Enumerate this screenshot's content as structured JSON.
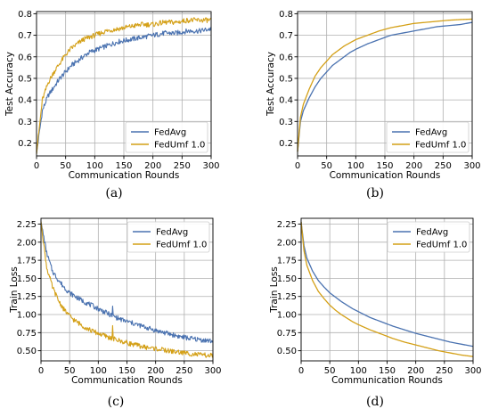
{
  "chart_data": [
    {
      "type": "line",
      "caption": "(a)",
      "xlabel": "Communication Rounds",
      "ylabel": "Test Accuracy",
      "xlim": [
        0,
        300
      ],
      "ylim": [
        0.14,
        0.81
      ],
      "xticks": [
        0,
        50,
        100,
        150,
        200,
        250,
        300
      ],
      "yticks": [
        0.2,
        0.3,
        0.4,
        0.5,
        0.6,
        0.7,
        0.8
      ],
      "grid": true,
      "legend": "lower-right",
      "noisy": true,
      "series": [
        {
          "name": "FedAvg",
          "color": "#4a72b0",
          "x": [
            0,
            10,
            20,
            30,
            40,
            50,
            60,
            70,
            80,
            90,
            100,
            120,
            140,
            160,
            180,
            200,
            220,
            240,
            260,
            280,
            300
          ],
          "y": [
            0.15,
            0.35,
            0.42,
            0.46,
            0.5,
            0.53,
            0.56,
            0.58,
            0.6,
            0.62,
            0.63,
            0.65,
            0.67,
            0.68,
            0.69,
            0.7,
            0.71,
            0.71,
            0.72,
            0.72,
            0.73
          ]
        },
        {
          "name": "FedUmf 1.0",
          "color": "#d4a017",
          "x": [
            0,
            10,
            20,
            30,
            40,
            50,
            60,
            70,
            80,
            90,
            100,
            120,
            140,
            160,
            180,
            200,
            220,
            240,
            260,
            280,
            300
          ],
          "y": [
            0.15,
            0.4,
            0.48,
            0.53,
            0.57,
            0.61,
            0.64,
            0.66,
            0.68,
            0.69,
            0.7,
            0.72,
            0.73,
            0.74,
            0.75,
            0.75,
            0.76,
            0.76,
            0.77,
            0.77,
            0.77
          ]
        }
      ]
    },
    {
      "type": "line",
      "caption": "(b)",
      "xlabel": "Communication Rounds",
      "ylabel": "Test Accuracy",
      "xlim": [
        0,
        300
      ],
      "ylim": [
        0.14,
        0.81
      ],
      "xticks": [
        0,
        50,
        100,
        150,
        200,
        250,
        300
      ],
      "yticks": [
        0.2,
        0.3,
        0.4,
        0.5,
        0.6,
        0.7,
        0.8
      ],
      "grid": true,
      "legend": "lower-right",
      "noisy": false,
      "series": [
        {
          "name": "FedAvg",
          "color": "#4a72b0",
          "x": [
            0,
            5,
            10,
            20,
            30,
            40,
            50,
            60,
            70,
            80,
            90,
            100,
            120,
            140,
            160,
            180,
            200,
            220,
            240,
            260,
            280,
            300
          ],
          "y": [
            0.16,
            0.3,
            0.35,
            0.41,
            0.46,
            0.5,
            0.53,
            0.56,
            0.58,
            0.6,
            0.62,
            0.635,
            0.66,
            0.68,
            0.7,
            0.71,
            0.72,
            0.73,
            0.74,
            0.745,
            0.75,
            0.76
          ]
        },
        {
          "name": "FedUmf 1.0",
          "color": "#d4a017",
          "x": [
            0,
            5,
            10,
            20,
            30,
            40,
            50,
            60,
            70,
            80,
            90,
            100,
            120,
            140,
            160,
            180,
            200,
            220,
            240,
            260,
            280,
            300
          ],
          "y": [
            0.16,
            0.32,
            0.38,
            0.45,
            0.51,
            0.55,
            0.58,
            0.61,
            0.63,
            0.65,
            0.665,
            0.68,
            0.7,
            0.72,
            0.735,
            0.745,
            0.755,
            0.76,
            0.765,
            0.77,
            0.773,
            0.775
          ]
        }
      ]
    },
    {
      "type": "line",
      "caption": "(c)",
      "xlabel": "Communication Rounds",
      "ylabel": "Train Loss",
      "xlim": [
        0,
        300
      ],
      "ylim": [
        0.36,
        2.33
      ],
      "xticks": [
        0,
        50,
        100,
        150,
        200,
        250,
        300
      ],
      "yticks": [
        0.5,
        0.75,
        1.0,
        1.25,
        1.5,
        1.75,
        2.0,
        2.25
      ],
      "ytick_labels": [
        "0.50",
        "0.75",
        "1.00",
        "1.25",
        "1.50",
        "1.75",
        "2.00",
        "2.25"
      ],
      "grid": true,
      "legend": "upper-right",
      "noisy": true,
      "series": [
        {
          "name": "FedAvg",
          "color": "#4a72b0",
          "x": [
            0,
            10,
            20,
            30,
            40,
            50,
            60,
            70,
            80,
            90,
            100,
            120,
            140,
            160,
            180,
            200,
            220,
            240,
            260,
            280,
            300
          ],
          "y": [
            2.28,
            1.85,
            1.6,
            1.48,
            1.38,
            1.3,
            1.25,
            1.2,
            1.16,
            1.12,
            1.08,
            1.0,
            0.93,
            0.88,
            0.83,
            0.78,
            0.74,
            0.7,
            0.67,
            0.65,
            0.63
          ]
        },
        {
          "name": "FedUmf 1.0",
          "color": "#d4a017",
          "x": [
            0,
            10,
            20,
            30,
            40,
            50,
            60,
            70,
            80,
            90,
            100,
            120,
            140,
            160,
            180,
            200,
            220,
            240,
            260,
            280,
            300
          ],
          "y": [
            2.28,
            1.65,
            1.38,
            1.2,
            1.07,
            0.98,
            0.91,
            0.86,
            0.81,
            0.77,
            0.74,
            0.68,
            0.63,
            0.59,
            0.55,
            0.53,
            0.5,
            0.48,
            0.46,
            0.44,
            0.43
          ]
        }
      ]
    },
    {
      "type": "line",
      "caption": "(d)",
      "xlabel": "Communication Rounds",
      "ylabel": "Train Loss",
      "xlim": [
        0,
        300
      ],
      "ylim": [
        0.36,
        2.33
      ],
      "xticks": [
        0,
        50,
        100,
        150,
        200,
        250,
        300
      ],
      "yticks": [
        0.5,
        0.75,
        1.0,
        1.25,
        1.5,
        1.75,
        2.0,
        2.25
      ],
      "ytick_labels": [
        "0.50",
        "0.75",
        "1.00",
        "1.25",
        "1.50",
        "1.75",
        "2.00",
        "2.25"
      ],
      "grid": true,
      "legend": "upper-right",
      "noisy": false,
      "series": [
        {
          "name": "FedAvg",
          "color": "#4a72b0",
          "x": [
            0,
            5,
            10,
            20,
            30,
            40,
            50,
            60,
            70,
            80,
            90,
            100,
            120,
            140,
            160,
            180,
            200,
            220,
            240,
            260,
            280,
            300
          ],
          "y": [
            2.28,
            1.95,
            1.78,
            1.6,
            1.47,
            1.38,
            1.3,
            1.24,
            1.18,
            1.13,
            1.08,
            1.04,
            0.96,
            0.9,
            0.84,
            0.79,
            0.74,
            0.7,
            0.66,
            0.62,
            0.59,
            0.56
          ]
        },
        {
          "name": "FedUmf 1.0",
          "color": "#d4a017",
          "x": [
            0,
            5,
            10,
            20,
            30,
            40,
            50,
            60,
            70,
            80,
            90,
            100,
            120,
            140,
            160,
            180,
            200,
            220,
            240,
            260,
            280,
            300
          ],
          "y": [
            2.28,
            1.88,
            1.68,
            1.47,
            1.32,
            1.22,
            1.13,
            1.06,
            1.0,
            0.95,
            0.9,
            0.86,
            0.79,
            0.73,
            0.67,
            0.62,
            0.58,
            0.54,
            0.5,
            0.47,
            0.44,
            0.42
          ]
        }
      ]
    }
  ]
}
